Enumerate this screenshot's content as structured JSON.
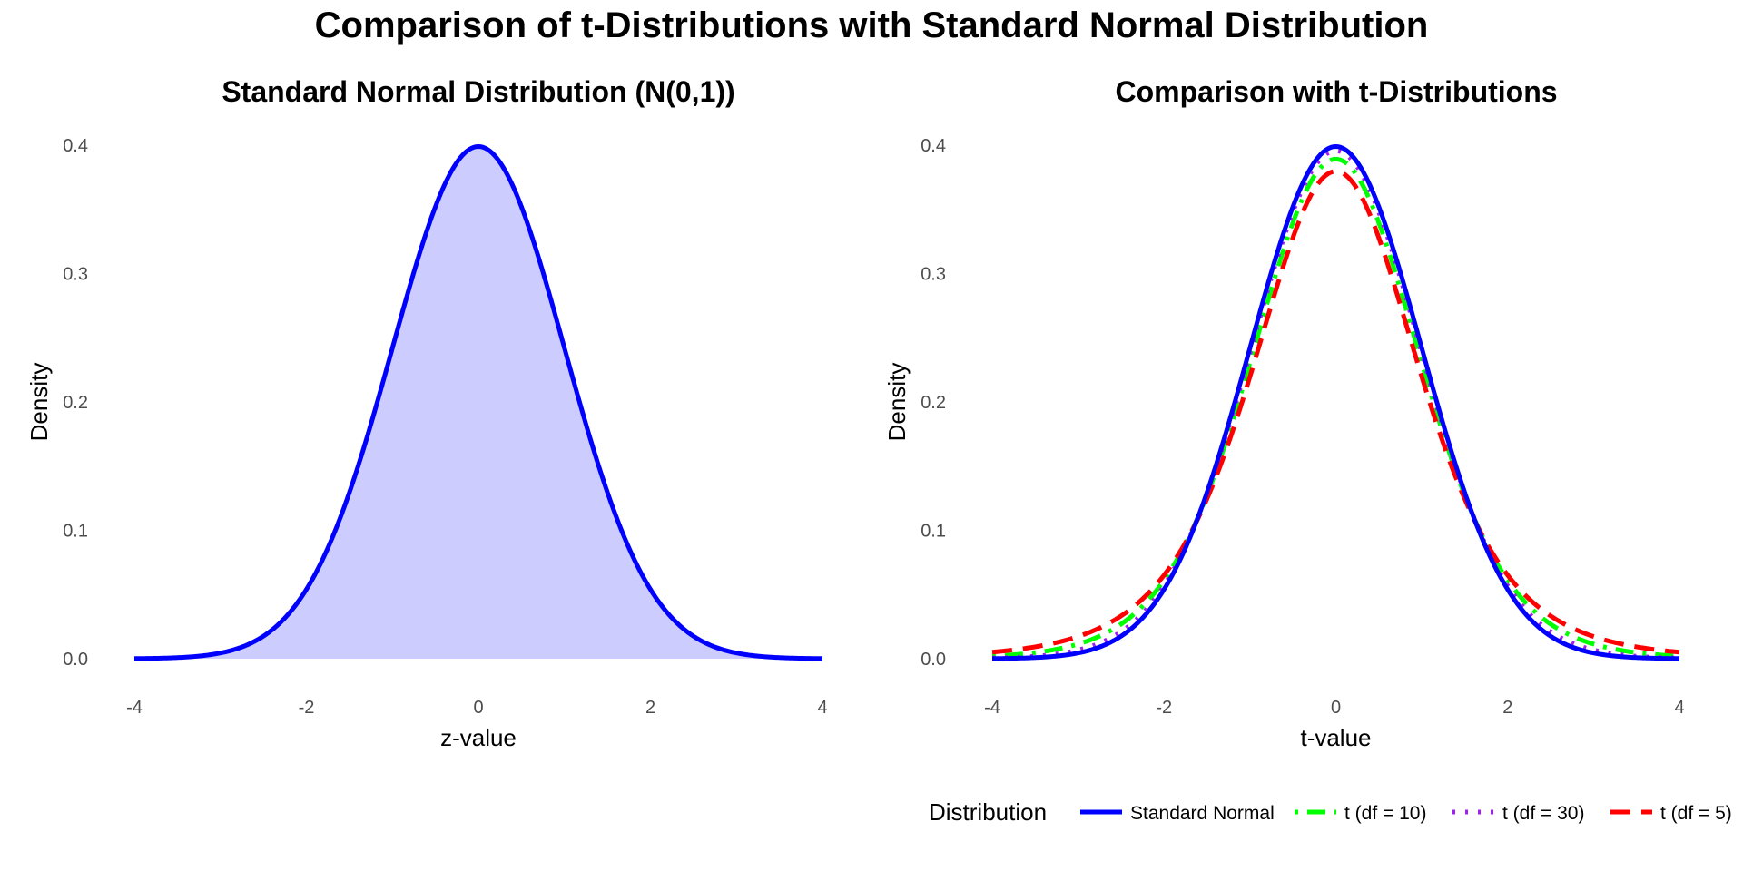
{
  "page_title": "Comparison of t-Distributions with Standard Normal Distribution",
  "chart_data": [
    {
      "type": "area",
      "title": "Standard Normal Distribution (N(0,1))",
      "xlabel": "z-value",
      "ylabel": "Density",
      "xlim": [
        -4,
        4
      ],
      "ylim": [
        0,
        0.4
      ],
      "x_ticks": [
        "-4",
        "-2",
        "0",
        "2",
        "4"
      ],
      "y_ticks": [
        "0.0",
        "0.1",
        "0.2",
        "0.3",
        "0.4"
      ],
      "grid": false,
      "series": [
        {
          "distribution": "normal",
          "color": "#0000ff",
          "fill": "#ccccff",
          "line_style": "solid"
        }
      ]
    },
    {
      "type": "line",
      "title": "Comparison with t-Distributions",
      "xlabel": "t-value",
      "ylabel": "Density",
      "xlim": [
        -4,
        4
      ],
      "ylim": [
        0,
        0.4
      ],
      "x_ticks": [
        "-4",
        "-2",
        "0",
        "2",
        "4"
      ],
      "y_ticks": [
        "0.0",
        "0.1",
        "0.2",
        "0.3",
        "0.4"
      ],
      "grid": false,
      "legend_position": "bottom",
      "legend_title": "Distribution",
      "series": [
        {
          "name": "Standard Normal",
          "distribution": "normal",
          "color": "#0000ff",
          "line_style": "solid"
        },
        {
          "name": "t (df = 10)",
          "distribution": "t",
          "df": 10,
          "color": "#00ff00",
          "line_style": "dotdash"
        },
        {
          "name": "t (df = 30)",
          "distribution": "t",
          "df": 30,
          "color": "#a020f0",
          "line_style": "dotted"
        },
        {
          "name": "t (df = 5)",
          "distribution": "t",
          "df": 5,
          "color": "#ff0000",
          "line_style": "dashed"
        }
      ]
    }
  ]
}
